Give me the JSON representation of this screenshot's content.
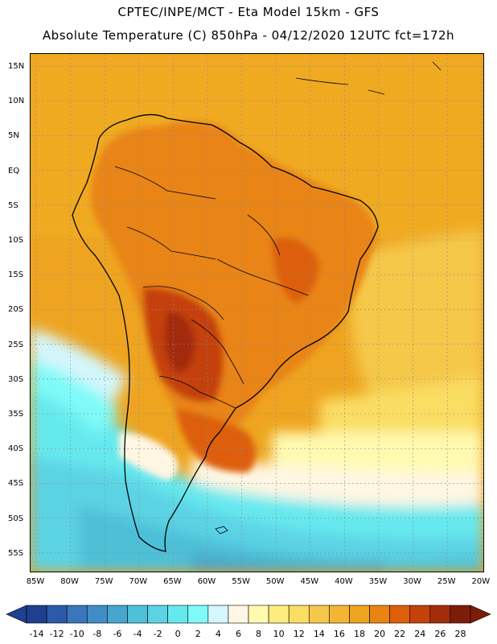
{
  "header": {
    "line1": "CPTEC/INPE/MCT -  Eta Model 15km - GFS",
    "line2": "Absolute Temperature (C) 850hPa - 04/12/2020 12UTC fct=172h"
  },
  "map": {
    "region": "South America",
    "lat_labels": [
      "15N",
      "10N",
      "5N",
      "EQ",
      "5S",
      "10S",
      "15S",
      "20S",
      "25S",
      "30S",
      "35S",
      "40S",
      "45S",
      "50S",
      "55S"
    ],
    "lon_labels": [
      "85W",
      "80W",
      "75W",
      "70W",
      "65W",
      "60W",
      "55W",
      "50W",
      "45W",
      "40W",
      "35W",
      "30W",
      "25W",
      "20W"
    ]
  },
  "legend": {
    "units": "C",
    "labels": [
      "-14",
      "-12",
      "-10",
      "-8",
      "-6",
      "-4",
      "-2",
      "0",
      "2",
      "4",
      "6",
      "8",
      "10",
      "12",
      "14",
      "16",
      "18",
      "20",
      "22",
      "24",
      "26",
      "28"
    ],
    "colors": [
      "#1f3f8f",
      "#2b5aa8",
      "#3a76bc",
      "#3f8ec6",
      "#47a6ce",
      "#4ec0d8",
      "#5bd3e4",
      "#66e9ee",
      "#7ffaf8",
      "#d4f6fc",
      "#fff6e3",
      "#fffab0",
      "#fdec7e",
      "#fadd63",
      "#f5c84a",
      "#f3b533",
      "#eea420",
      "#e98412",
      "#dd5e0b",
      "#c4410a",
      "#a32c0a",
      "#7e1c0a"
    ]
  }
}
